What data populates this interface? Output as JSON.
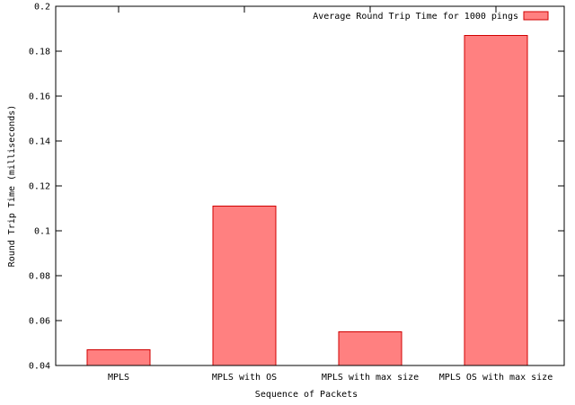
{
  "chart_data": {
    "type": "bar",
    "title": "",
    "xlabel": "Sequence of Packets",
    "ylabel": "Round Trip Time (milliseconds)",
    "categories": [
      "MPLS",
      "MPLS with OS",
      "MPLS with max size",
      "MPLS OS with max size"
    ],
    "series": [
      {
        "name": "Average Round Trip Time for 1000 pings",
        "values": [
          0.047,
          0.111,
          0.055,
          0.187
        ]
      }
    ],
    "ylim": [
      0.04,
      0.2
    ],
    "yticks": [
      0.04,
      0.06,
      0.08,
      0.1,
      0.12,
      0.14,
      0.16,
      0.18,
      0.2
    ],
    "ytick_labels": [
      "0.04",
      "0.06",
      "0.08",
      "0.1",
      "0.12",
      "0.14",
      "0.16",
      "0.18",
      "0.2"
    ],
    "grid": false,
    "legend_position": "top-right",
    "colors": {
      "bar_fill": "#ff8080",
      "bar_stroke": "#d00000",
      "axis": "#000000"
    }
  }
}
